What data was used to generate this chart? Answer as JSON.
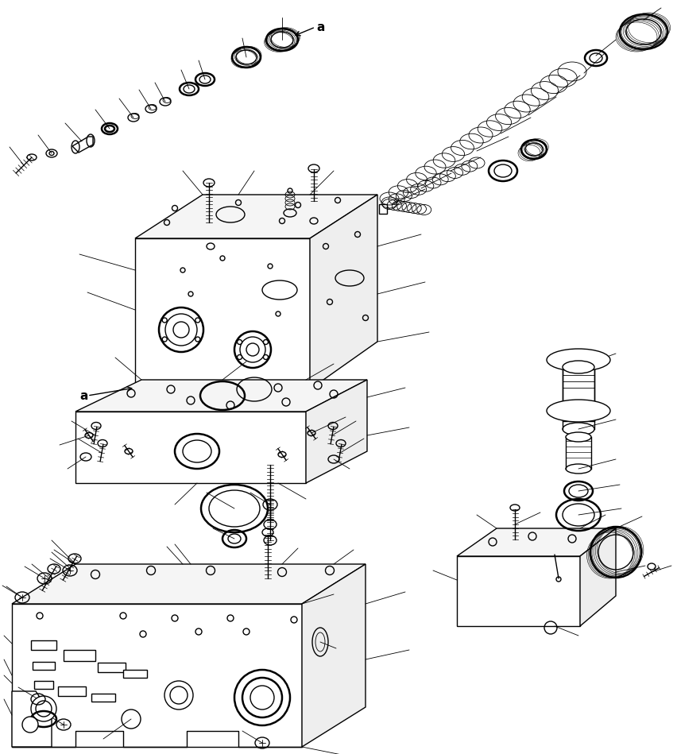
{
  "bg_color": "#ffffff",
  "line_color": "#000000",
  "lw": 1.0,
  "lw_thick": 1.8,
  "lw_thin": 0.6,
  "fig_width": 8.52,
  "fig_height": 9.49
}
